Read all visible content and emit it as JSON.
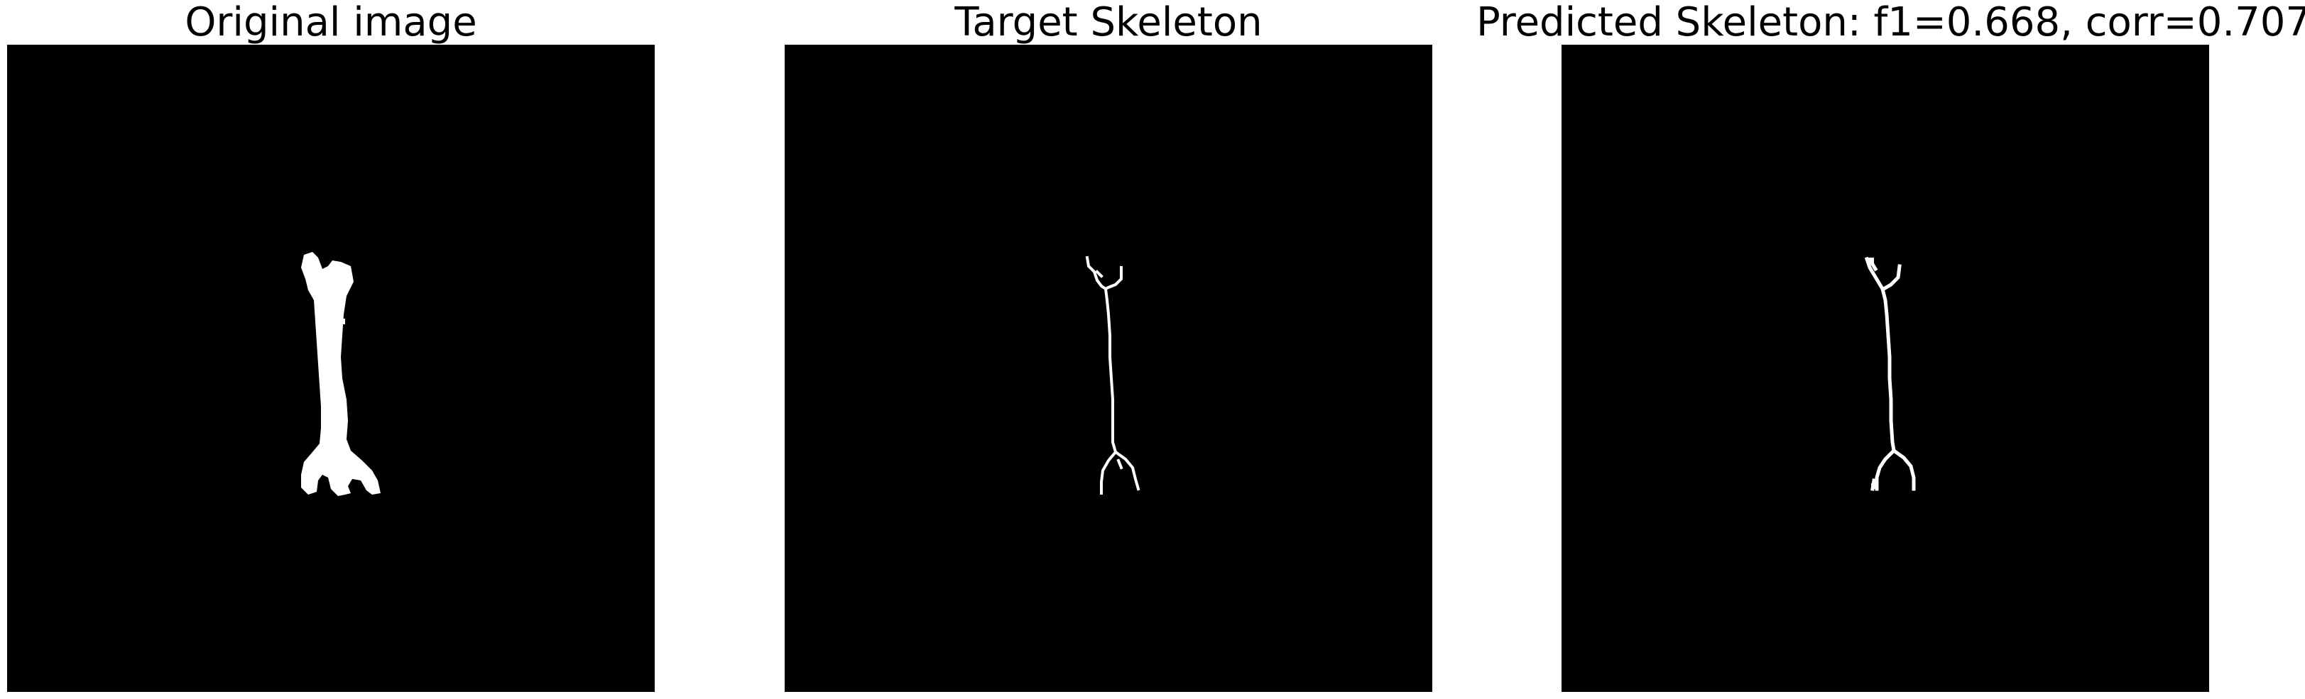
{
  "panels": [
    {
      "id": "original",
      "title": "Original image"
    },
    {
      "id": "target",
      "title": "Target Skeleton"
    },
    {
      "id": "predicted",
      "title": "Predicted Skeleton: f1=0.668, corr=0.707"
    }
  ],
  "colors": {
    "background": "#ffffff",
    "image_background": "#000000",
    "foreground": "#ffffff"
  }
}
